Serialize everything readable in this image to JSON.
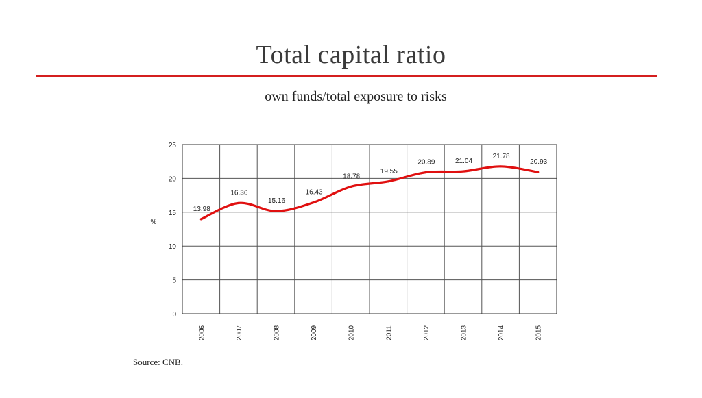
{
  "slide": {
    "title": "Total capital ratio",
    "subtitle": "own funds/total exposure to risks",
    "source": "Source: CNB."
  },
  "chart_data": {
    "type": "line",
    "title": "",
    "xlabel": "",
    "ylabel": "%",
    "categories": [
      "2006",
      "2007",
      "2008",
      "2009",
      "2010",
      "2011",
      "2012",
      "2013",
      "2014",
      "2015"
    ],
    "series": [
      {
        "values": [
          13.98,
          16.36,
          15.16,
          16.43,
          18.78,
          19.55,
          20.89,
          21.04,
          21.78,
          20.93
        ],
        "color": "#e01010"
      }
    ],
    "data_labels": [
      "13.98",
      "16.36",
      "15.16",
      "16.43",
      "18.78",
      "19.55",
      "20.89",
      "21.04",
      "21.78",
      "20.93"
    ],
    "ylim": [
      0,
      25
    ],
    "yticks": [
      0,
      5,
      10,
      15,
      20,
      25
    ],
    "grid": true,
    "legend": "none",
    "line_color": "#e01010"
  },
  "colors": {
    "accent_rule": "#d41f1f",
    "series_line": "#e01010"
  }
}
